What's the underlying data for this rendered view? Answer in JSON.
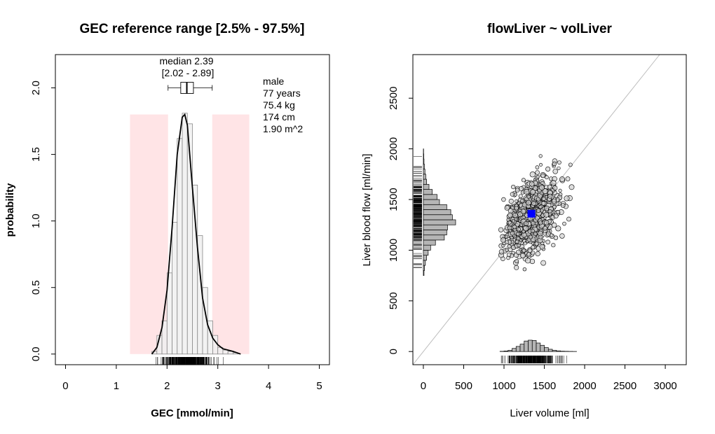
{
  "chart_data": [
    {
      "type": "bar",
      "title": "GEC reference range [2.5% - 97.5%]",
      "xlabel": "GEC [mmol/min]",
      "ylabel": "probability",
      "xlim": [
        -0.2,
        5.2
      ],
      "ylim": [
        -0.08,
        2.25
      ],
      "x_ticks": [
        "0",
        "1",
        "2",
        "3",
        "4",
        "5"
      ],
      "x_tick_values": [
        0,
        1,
        2,
        3,
        4,
        5
      ],
      "y_ticks": [
        "0.0",
        "0.5",
        "1.0",
        "1.5",
        "2.0"
      ],
      "y_tick_values": [
        0.0,
        0.5,
        1.0,
        1.5,
        2.0
      ],
      "reference_interval": [
        2.02,
        2.89
      ],
      "shaded_regions": [
        [
          1.27,
          2.02
        ],
        [
          2.89,
          3.62
        ]
      ],
      "shaded_height": 1.8,
      "shade_color": "#ffe4e6",
      "histogram": {
        "bin_width": 0.1,
        "bin_starts": [
          1.7,
          1.8,
          1.9,
          2.0,
          2.1,
          2.2,
          2.3,
          2.4,
          2.5,
          2.6,
          2.7,
          2.8,
          2.9,
          3.0,
          3.1,
          3.2,
          3.3
        ],
        "values": [
          0.02,
          0.14,
          0.25,
          0.61,
          0.99,
          1.62,
          1.81,
          1.73,
          1.27,
          0.89,
          0.5,
          0.25,
          0.14,
          0.05,
          0.03,
          0.02,
          0.01
        ]
      },
      "density": {
        "x": [
          1.7,
          1.8,
          1.9,
          2.0,
          2.1,
          2.2,
          2.3,
          2.35,
          2.4,
          2.5,
          2.6,
          2.7,
          2.8,
          2.9,
          3.0,
          3.1,
          3.2,
          3.3,
          3.45
        ],
        "y": [
          0.0,
          0.05,
          0.2,
          0.48,
          0.95,
          1.5,
          1.78,
          1.8,
          1.72,
          1.25,
          0.8,
          0.42,
          0.22,
          0.12,
          0.07,
          0.04,
          0.03,
          0.02,
          0.0
        ]
      },
      "boxplot": {
        "y": 2.0,
        "whisker_low": 2.02,
        "q1": 2.27,
        "median": 2.39,
        "q3": 2.52,
        "whisker_high": 2.89
      },
      "median_label": "median 2.39",
      "interval_label": "[2.02 - 2.89]",
      "patient_info": [
        "male",
        "77 years",
        "75.4 kg",
        "174 cm",
        "1.90 m^2"
      ],
      "rug_range": [
        1.75,
        3.35
      ]
    },
    {
      "type": "scatter",
      "title": "flowLiver ~ volLiver",
      "xlabel": "Liver volume [ml]",
      "ylabel": "Liver blood flow [ml/min]",
      "xlim": [
        -130,
        3260
      ],
      "ylim": [
        -130,
        2930
      ],
      "x_ticks": [
        "0",
        "500",
        "1000",
        "1500",
        "2000",
        "2500",
        "3000"
      ],
      "x_tick_values": [
        0,
        500,
        1000,
        1500,
        2000,
        2500,
        3000
      ],
      "y_ticks": [
        "0",
        "500",
        "1000",
        "1500",
        "2000",
        "2500"
      ],
      "y_tick_values": [
        0,
        500,
        1000,
        1500,
        2000,
        2500
      ],
      "identity_line": true,
      "point_cloud": {
        "center": [
          1340,
          1340
        ],
        "sd": [
          170,
          190
        ],
        "x_range": [
          950,
          1850
        ],
        "y_range": [
          750,
          1990
        ]
      },
      "highlight_point": {
        "x": 1340,
        "y": 1360,
        "color": "#0000ff"
      },
      "flow_histogram": {
        "bin_width": 50,
        "bin_starts": [
          750,
          800,
          850,
          900,
          950,
          1000,
          1050,
          1100,
          1150,
          1200,
          1250,
          1300,
          1350,
          1400,
          1450,
          1500,
          1550,
          1600,
          1650,
          1700,
          1750,
          1800,
          1850,
          1900,
          1950
        ],
        "values": [
          8,
          15,
          25,
          40,
          60,
          90,
          150,
          260,
          290,
          300,
          400,
          360,
          340,
          290,
          200,
          170,
          110,
          70,
          40,
          30,
          20,
          12,
          8,
          5,
          3
        ]
      },
      "volume_histogram": {
        "bin_width": 50,
        "bin_starts": [
          950,
          1000,
          1050,
          1100,
          1150,
          1200,
          1250,
          1300,
          1350,
          1400,
          1450,
          1500,
          1550,
          1600,
          1650,
          1700,
          1750,
          1800,
          1850
        ],
        "values": [
          8,
          20,
          45,
          110,
          180,
          260,
          370,
          400,
          390,
          300,
          220,
          140,
          80,
          45,
          25,
          12,
          8,
          5,
          3
        ]
      }
    }
  ]
}
